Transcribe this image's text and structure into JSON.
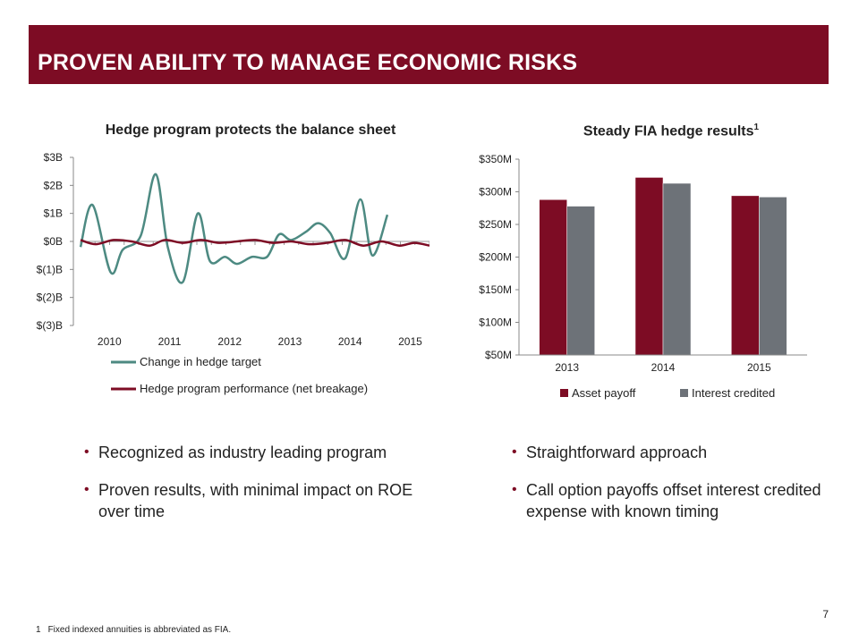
{
  "header": {
    "title": "PROVEN ABILITY TO MANAGE ECONOMIC RISKS"
  },
  "colors": {
    "accent": "#7d0c24",
    "gray_series": "#6d7278",
    "teal_series": "#4d8a82"
  },
  "left_chart": {
    "title": "Hedge program protects the balance sheet",
    "y_ticks": [
      "$3B",
      "$2B",
      "$1B",
      "$0B",
      "$(1)B",
      "$(2)B",
      "$(3)B"
    ],
    "x_ticks": [
      "2010",
      "2011",
      "2012",
      "2013",
      "2014",
      "2015"
    ],
    "legend": [
      "Change in hedge target",
      "Hedge program performance (net breakage)"
    ]
  },
  "right_chart": {
    "title": "Steady FIA hedge results",
    "title_sup": "1",
    "y_ticks": [
      "$350M",
      "$300M",
      "$250M",
      "$200M",
      "$150M",
      "$100M",
      "$50M"
    ],
    "legend": [
      "Asset payoff",
      "Interest credited"
    ]
  },
  "bullets_left": [
    "Recognized as industry leading program",
    "Proven results, with minimal impact on ROE over time"
  ],
  "bullets_right": [
    "Straightforward approach",
    "Call option payoffs offset interest credited expense with known timing"
  ],
  "page_number": "7",
  "footnote": {
    "mark": "1",
    "text": "Fixed indexed annuities is abbreviated as FIA."
  },
  "chart_data": [
    {
      "type": "line",
      "title": "Hedge program protects the balance sheet",
      "unit": "$B",
      "ylim": [
        -3,
        3
      ],
      "x_ticks": [
        "2010",
        "2011",
        "2012",
        "2013",
        "2014",
        "2015"
      ],
      "x_range": [
        2009.6,
        2015.4
      ],
      "series": [
        {
          "name": "Change in hedge target",
          "color": "#4d8a82",
          "x": [
            2009.6,
            2009.8,
            2010.1,
            2010.3,
            2010.6,
            2010.85,
            2011.05,
            2011.3,
            2011.55,
            2011.75,
            2012.0,
            2012.2,
            2012.45,
            2012.7,
            2012.9,
            2013.1,
            2013.35,
            2013.55,
            2013.75,
            2014.0,
            2014.25,
            2014.45,
            2014.7,
            2014.95,
            2015.15,
            2015.4
          ],
          "values": [
            -0.2,
            1.3,
            -1.1,
            -0.3,
            0.2,
            2.4,
            -0.2,
            -1.45,
            1.0,
            -0.7,
            -0.55,
            -0.8,
            -0.55,
            -0.55,
            0.25,
            0.05,
            0.35,
            0.65,
            0.3,
            -0.6,
            1.5,
            -0.5,
            0.95,
            null,
            null,
            null
          ]
        },
        {
          "name": "Hedge program performance (net breakage)",
          "color": "#7d0c24",
          "x": [
            2009.6,
            2009.85,
            2010.15,
            2010.45,
            2010.75,
            2011.0,
            2011.3,
            2011.6,
            2011.9,
            2012.2,
            2012.5,
            2012.8,
            2013.1,
            2013.4,
            2013.7,
            2014.0,
            2014.3,
            2014.6,
            2014.9,
            2015.15,
            2015.4
          ],
          "values": [
            0.05,
            -0.1,
            0.05,
            0.0,
            -0.15,
            0.05,
            -0.05,
            0.05,
            -0.05,
            0.0,
            0.05,
            -0.05,
            0.0,
            -0.1,
            -0.05,
            0.05,
            -0.15,
            0.0,
            -0.15,
            -0.05,
            -0.15
          ]
        }
      ]
    },
    {
      "type": "bar",
      "title": "Steady FIA hedge results",
      "categories": [
        "2013",
        "2014",
        "2015"
      ],
      "ylim": [
        50,
        350
      ],
      "unit": "$M",
      "series": [
        {
          "name": "Asset payoff",
          "color": "#7d0c24",
          "values": [
            288,
            322,
            294
          ]
        },
        {
          "name": "Interest credited",
          "color": "#6d7278",
          "values": [
            278,
            313,
            292
          ]
        }
      ]
    }
  ]
}
